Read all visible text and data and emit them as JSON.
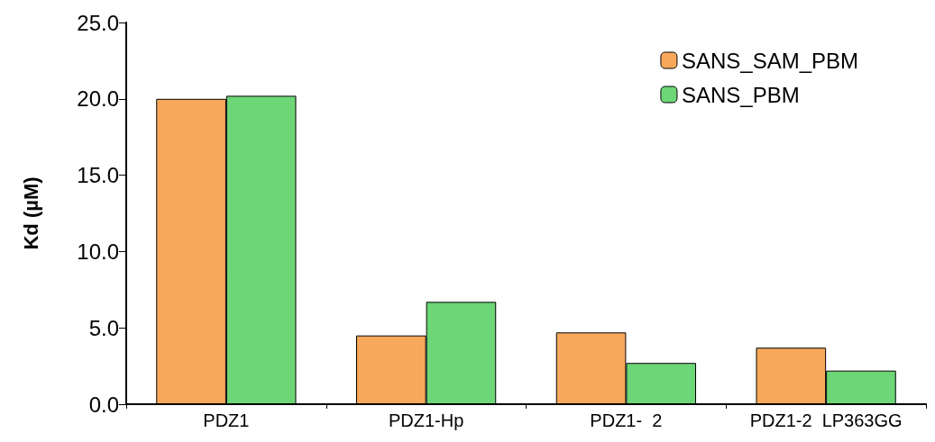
{
  "chart_data": {
    "type": "bar",
    "ylabel": "Kd (µM)",
    "categories": [
      "PDZ1",
      "PDZ1-Hp",
      "PDZ1-  2",
      "PDZ1-2  LP363GG"
    ],
    "series": [
      {
        "name": "SANS_SAM_PBM",
        "color": "#f8a85a",
        "values": [
          20.0,
          4.5,
          4.7,
          3.7
        ]
      },
      {
        "name": "SANS_PBM",
        "color": "#6dd676",
        "values": [
          20.2,
          6.7,
          2.7,
          2.2
        ]
      }
    ],
    "ylim": [
      0,
      25
    ],
    "yticks": [
      {
        "value": 0,
        "label": "0.0"
      },
      {
        "value": 5,
        "label": "5.0"
      },
      {
        "value": 10,
        "label": "10.0"
      },
      {
        "value": 15,
        "label": "15.0"
      },
      {
        "value": 20,
        "label": "20.0"
      },
      {
        "value": 25,
        "label": "25.0"
      }
    ],
    "grid": false,
    "legend": "top right"
  }
}
